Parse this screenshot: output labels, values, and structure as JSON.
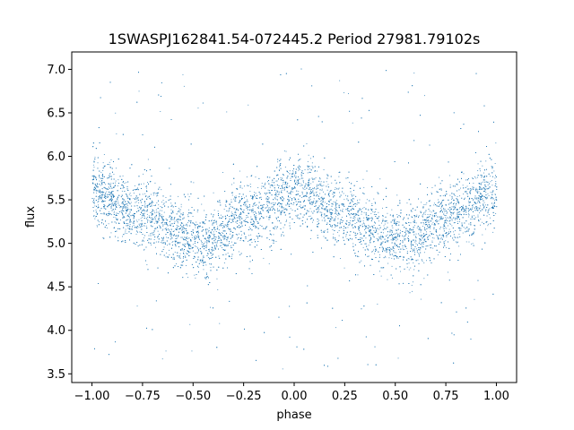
{
  "chart_data": {
    "type": "scatter",
    "title": "1SWASPJ162841.54-072445.2 Period 27981.79102s",
    "xlabel": "phase",
    "ylabel": "flux",
    "xlim": [
      -1.1,
      1.1
    ],
    "ylim": [
      3.4,
      7.2
    ],
    "xticks": [
      -1.0,
      -0.75,
      -0.5,
      -0.25,
      0.0,
      0.25,
      0.5,
      0.75,
      1.0
    ],
    "xtick_labels": [
      "−1.00",
      "−0.75",
      "−0.50",
      "−0.25",
      "0.00",
      "0.25",
      "0.50",
      "0.75",
      "1.00"
    ],
    "yticks": [
      3.5,
      4.0,
      4.5,
      5.0,
      5.5,
      6.0,
      6.5,
      7.0
    ],
    "ytick_labels": [
      "3.5",
      "4.0",
      "4.5",
      "5.0",
      "5.5",
      "6.0",
      "6.5",
      "7.0"
    ],
    "grid": false,
    "point_color": "#1f77b4",
    "series": [
      {
        "trend": {
          "x": [
            -1.0,
            -0.75,
            -0.5,
            -0.45,
            -0.25,
            0.0,
            0.25,
            0.5,
            0.55,
            0.75,
            1.0
          ],
          "y": [
            5.6,
            5.35,
            5.05,
            5.0,
            5.3,
            5.6,
            5.35,
            5.05,
            5.0,
            5.3,
            5.6
          ]
        },
        "scatter_sd": 0.2,
        "n_points": 9000,
        "x_range": [
          -1.0,
          1.0
        ],
        "y_range": [
          3.55,
          7.05
        ]
      }
    ]
  }
}
